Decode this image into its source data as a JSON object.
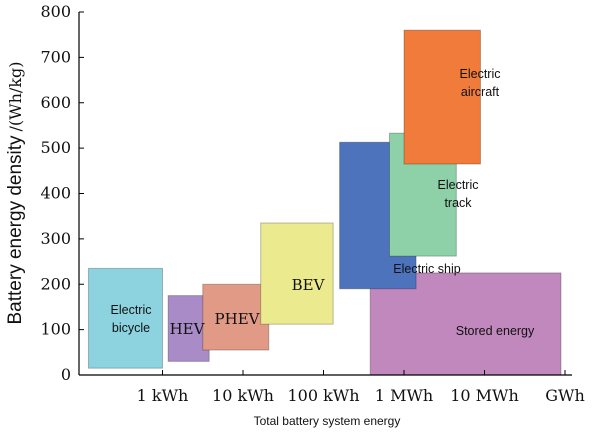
{
  "chart_data": {
    "type": "range-boxes",
    "xlabel": "Total battery system energy",
    "ylabel": "Battery energy density",
    "ylabel_unit": "/(Wh/kg)",
    "ylim": [
      0,
      800
    ],
    "y_ticks": [
      0,
      100,
      200,
      300,
      400,
      500,
      600,
      700,
      800
    ],
    "x_ticks": [
      "1 kWh",
      "10 kWh",
      "100 kWh",
      "1 MWh",
      "10 MWh",
      "GWh"
    ],
    "grid": false,
    "series": [
      {
        "label": "Electric bicycle",
        "color": "#8dd3df",
        "x_from": 0.08,
        "x_to": 1.0,
        "y_from": 15,
        "y_to": 235
      },
      {
        "label": "HEV",
        "color": "#a98bc7",
        "x_from": 1.07,
        "x_to": 1.58,
        "y_from": 30,
        "y_to": 175
      },
      {
        "label": "PHEV",
        "color": "#e19a86",
        "x_from": 1.5,
        "x_to": 2.32,
        "y_from": 55,
        "y_to": 200
      },
      {
        "label": "BEV",
        "color": "#ecea8f",
        "x_from": 2.22,
        "x_to": 3.12,
        "y_from": 112,
        "y_to": 335
      },
      {
        "label": "Stored energy",
        "color": "#c088bd",
        "x_from": 3.58,
        "x_to": 5.95,
        "y_from": 0,
        "y_to": 225
      },
      {
        "label": "Electric ship",
        "color": "#4e73bd",
        "x_from": 3.2,
        "x_to": 4.15,
        "y_from": 190,
        "y_to": 513
      },
      {
        "label": "Electric track",
        "color": "#8ed0a8",
        "x_from": 3.82,
        "x_to": 4.65,
        "y_from": 262,
        "y_to": 533
      },
      {
        "label": "Electric aircraft",
        "color": "#f07b3b",
        "x_from": 4.0,
        "x_to": 4.95,
        "y_from": 465,
        "y_to": 760
      }
    ]
  }
}
